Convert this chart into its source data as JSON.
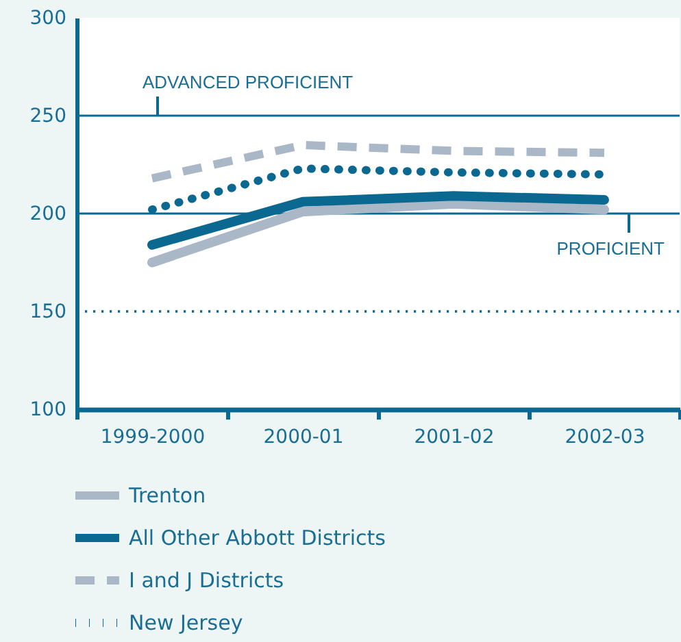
{
  "chart_data": {
    "type": "line",
    "categories": [
      "1999-2000",
      "2000-01",
      "2001-02",
      "2002-03"
    ],
    "series": [
      {
        "name": "Trenton",
        "color": "#a9b7c6",
        "line_style": "solid",
        "values": [
          175,
          201,
          205,
          202
        ]
      },
      {
        "name": "All Other Abbott Districts",
        "color": "#0b6890",
        "line_style": "solid",
        "values": [
          184,
          206,
          209,
          207
        ]
      },
      {
        "name": "I and J Districts",
        "color": "#a9b7c6",
        "line_style": "dashed",
        "values": [
          218,
          235,
          232,
          231
        ]
      },
      {
        "name": "New Jersey",
        "color": "#0b6890",
        "line_style": "dotted",
        "values": [
          202,
          223,
          221,
          220
        ]
      }
    ],
    "ylim": [
      100,
      300
    ],
    "yticks": [
      100,
      150,
      200,
      250,
      300
    ],
    "ref_lines": [
      {
        "axis": "y",
        "value": 250,
        "label": "ADVANCED PROFICIENT",
        "color": "#0b6890"
      },
      {
        "axis": "y",
        "value": 200,
        "label": "PROFICIENT",
        "color": "#0b6890"
      },
      {
        "axis": "y",
        "value": 150,
        "color": "#0b6890",
        "line_style": "dotted"
      }
    ],
    "legend": "bottom",
    "grid": false,
    "marker": "none"
  }
}
